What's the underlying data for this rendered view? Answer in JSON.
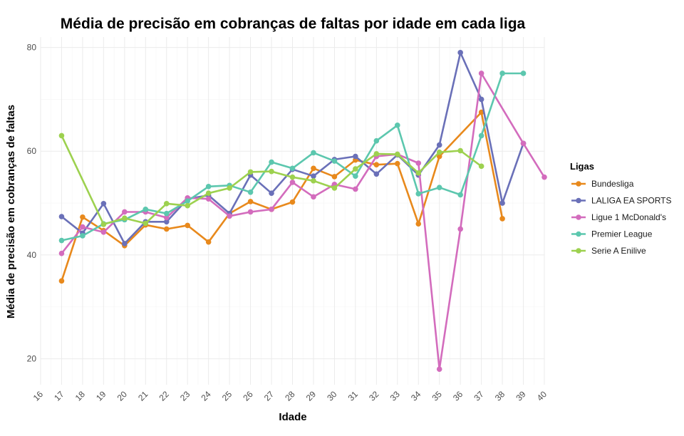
{
  "chart_data": {
    "type": "line",
    "title": "Média de precisão em cobranças de faltas por idade em cada liga",
    "xlabel": "Idade",
    "ylabel": "Média de precisão em cobranças de faltas",
    "xlim": [
      16,
      40
    ],
    "ylim": [
      15,
      82
    ],
    "x_ticks": [
      "16",
      "17",
      "18",
      "19",
      "20",
      "21",
      "22",
      "23",
      "24",
      "25",
      "26",
      "27",
      "28",
      "29",
      "30",
      "31",
      "32",
      "33",
      "34",
      "35",
      "36",
      "37",
      "38",
      "39",
      "40"
    ],
    "y_ticks": [
      "20",
      "40",
      "60",
      "80"
    ],
    "grid": true,
    "legend_title": "Ligas",
    "legend_position": "right",
    "series": [
      {
        "name": "Bundesliga",
        "color": "#e8891c",
        "points": [
          [
            17,
            35
          ],
          [
            18,
            47.3
          ],
          [
            19,
            44.7
          ],
          [
            20,
            41.8
          ],
          [
            21,
            45.8
          ],
          [
            22,
            45
          ],
          [
            23,
            45.7
          ],
          [
            24,
            42.5
          ],
          [
            25,
            48
          ],
          [
            26,
            50.3
          ],
          [
            27,
            48.8
          ],
          [
            28,
            50.2
          ],
          [
            29,
            56.7
          ],
          [
            30,
            55.1
          ],
          [
            31,
            58.3
          ],
          [
            32,
            57.4
          ],
          [
            33,
            57.6
          ],
          [
            34,
            46
          ],
          [
            35,
            59
          ],
          [
            37,
            67.5
          ],
          [
            38,
            47
          ]
        ]
      },
      {
        "name": "LALIGA EA SPORTS",
        "color": "#6a70b8",
        "points": [
          [
            17,
            47.4
          ],
          [
            18,
            44.2
          ],
          [
            19,
            49.9
          ],
          [
            20,
            42.2
          ],
          [
            21,
            46.4
          ],
          [
            22,
            46.4
          ],
          [
            23,
            50.8
          ],
          [
            24,
            51.5
          ],
          [
            25,
            48
          ],
          [
            26,
            55.4
          ],
          [
            27,
            51.9
          ],
          [
            28,
            56.5
          ],
          [
            29,
            55.2
          ],
          [
            30,
            58.4
          ],
          [
            31,
            59
          ],
          [
            32,
            55.6
          ],
          [
            33,
            59.3
          ],
          [
            34,
            55.4
          ],
          [
            35,
            61.2
          ],
          [
            36,
            79
          ],
          [
            37,
            70
          ],
          [
            38,
            50
          ],
          [
            39,
            61.5
          ]
        ]
      },
      {
        "name": "Ligue 1 McDonald's",
        "color": "#d36cbd",
        "points": [
          [
            17,
            40.3
          ],
          [
            18,
            45.4
          ],
          [
            19,
            44.4
          ],
          [
            20,
            48.3
          ],
          [
            21,
            48.3
          ],
          [
            22,
            47.2
          ],
          [
            23,
            51
          ],
          [
            24,
            50.8
          ],
          [
            25,
            47.5
          ],
          [
            26,
            48.3
          ],
          [
            27,
            48.8
          ],
          [
            28,
            54
          ],
          [
            29,
            51.2
          ],
          [
            30,
            53.6
          ],
          [
            31,
            52.7
          ],
          [
            32,
            59
          ],
          [
            33,
            59.4
          ],
          [
            34,
            57.7
          ],
          [
            35,
            18
          ],
          [
            36,
            45
          ],
          [
            37,
            75
          ],
          [
            39,
            61.5
          ],
          [
            40,
            55
          ]
        ]
      },
      {
        "name": "Premier League",
        "color": "#5cc7ae",
        "points": [
          [
            17,
            42.8
          ],
          [
            18,
            43.7
          ],
          [
            19,
            46
          ],
          [
            20,
            46.8
          ],
          [
            21,
            48.8
          ],
          [
            22,
            48
          ],
          [
            23,
            50.4
          ],
          [
            24,
            53.2
          ],
          [
            25,
            53.4
          ],
          [
            26,
            52.1
          ],
          [
            27,
            57.9
          ],
          [
            28,
            56.7
          ],
          [
            29,
            59.7
          ],
          [
            30,
            58.1
          ],
          [
            31,
            55.2
          ],
          [
            32,
            62
          ],
          [
            33,
            65
          ],
          [
            34,
            51.8
          ],
          [
            35,
            53
          ],
          [
            36,
            51.6
          ],
          [
            37,
            63
          ],
          [
            38,
            75
          ],
          [
            39,
            75
          ]
        ]
      },
      {
        "name": "Serie A Enilive",
        "color": "#9dd14f",
        "points": [
          [
            17,
            63
          ],
          [
            19,
            45.9
          ],
          [
            20,
            47.1
          ],
          [
            21,
            46.1
          ],
          [
            22,
            49.9
          ],
          [
            23,
            49.5
          ],
          [
            24,
            51.9
          ],
          [
            25,
            52.9
          ],
          [
            26,
            56
          ],
          [
            27,
            56.1
          ],
          [
            28,
            55
          ],
          [
            29,
            54.3
          ],
          [
            30,
            52.9
          ],
          [
            31,
            56.6
          ],
          [
            32,
            59.5
          ],
          [
            33,
            59.4
          ],
          [
            34,
            55.8
          ],
          [
            35,
            59.8
          ],
          [
            36,
            60.1
          ],
          [
            37,
            57.1
          ]
        ]
      }
    ]
  }
}
